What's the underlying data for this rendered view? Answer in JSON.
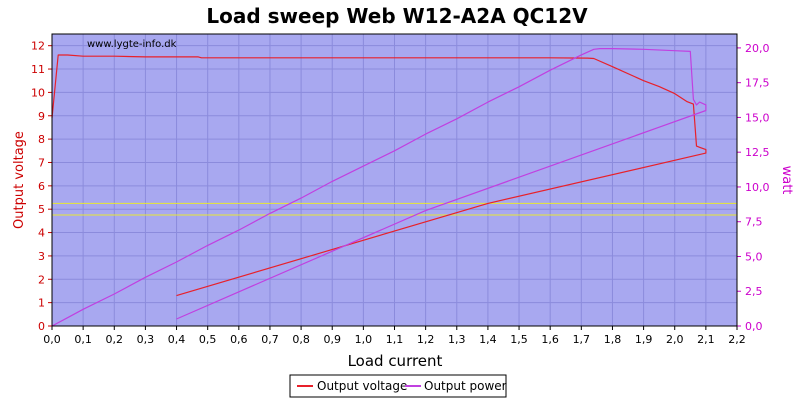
{
  "chart_data": {
    "type": "line",
    "title": "Load sweep Web W12-A2A QC12V",
    "watermark": "www.lygte-info.dk",
    "xlabel": "Load current",
    "ylabel": "Output voltage",
    "y2label": "watt",
    "xlim": [
      0,
      2.2
    ],
    "ylim": [
      0,
      12.5
    ],
    "y2lim": [
      0,
      21
    ],
    "x_ticks": [
      "0,0",
      "0,1",
      "0,2",
      "0,3",
      "0,4",
      "0,5",
      "0,6",
      "0,7",
      "0,8",
      "0,9",
      "1,0",
      "1,1",
      "1,2",
      "1,3",
      "1,4",
      "1,5",
      "1,6",
      "1,7",
      "1,8",
      "1,9",
      "2,0",
      "2,1",
      "2,2"
    ],
    "y_ticks": [
      "0",
      "1",
      "2",
      "3",
      "4",
      "5",
      "6",
      "7",
      "8",
      "9",
      "10",
      "11",
      "12"
    ],
    "y2_ticks": [
      "0,0",
      "2,5",
      "5,0",
      "7,5",
      "10,0",
      "12,5",
      "15,0",
      "17,5",
      "20,0"
    ],
    "grid": true,
    "legend_position": "bottom-center",
    "colors": {
      "plot_background": "#a8a8f0",
      "grid": "#8b8bdc",
      "voltage": "#e8202a",
      "power": "#c040e0",
      "reference": "#e8e830",
      "left_axis_text": "#cc0000",
      "right_axis_text": "#cc00cc"
    },
    "reference_lines": [
      5.25,
      4.75
    ],
    "series": [
      {
        "name": "Output voltage",
        "axis": "left",
        "x": [
          0,
          0.02,
          0.05,
          0.1,
          0.2,
          0.3,
          0.4,
          0.47,
          0.48,
          0.5,
          0.8,
          1.0,
          1.2,
          1.4,
          1.6,
          1.72,
          1.74,
          1.8,
          1.9,
          1.95,
          2.0,
          2.04,
          2.06,
          2.07,
          2.08,
          2.1,
          2.1,
          1.4,
          0.4
        ],
        "y": [
          8.9,
          11.6,
          11.6,
          11.55,
          11.55,
          11.52,
          11.52,
          11.52,
          11.48,
          11.48,
          11.48,
          11.48,
          11.48,
          11.48,
          11.48,
          11.47,
          11.45,
          11.1,
          10.5,
          10.25,
          9.95,
          9.6,
          9.5,
          7.7,
          7.65,
          7.55,
          7.4,
          5.25,
          1.3
        ]
      },
      {
        "name": "Output power",
        "axis": "right",
        "x": [
          0,
          0.05,
          0.1,
          0.2,
          0.3,
          0.4,
          0.5,
          0.6,
          0.7,
          0.8,
          0.9,
          1.0,
          1.1,
          1.2,
          1.3,
          1.4,
          1.5,
          1.6,
          1.7,
          1.74,
          1.76,
          1.8,
          1.9,
          2.0,
          2.05,
          2.06,
          2.07,
          2.08,
          2.1,
          2.1,
          1.2,
          0.4
        ],
        "y": [
          0,
          0.6,
          1.2,
          2.3,
          3.5,
          4.6,
          5.8,
          6.9,
          8.1,
          9.2,
          10.4,
          11.5,
          12.6,
          13.8,
          14.9,
          16.1,
          17.2,
          18.4,
          19.5,
          19.9,
          19.95,
          19.95,
          19.9,
          19.8,
          19.75,
          16.3,
          15.9,
          16.1,
          15.9,
          15.5,
          8.3,
          0.5
        ]
      }
    ]
  }
}
